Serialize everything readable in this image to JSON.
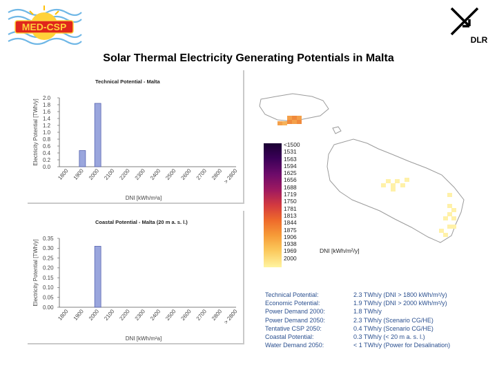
{
  "page_title": "Solar Thermal Electricity Generating Potentials in Malta",
  "logo_left_text": "MED-CSP",
  "logo_right_text": "DLR",
  "colors": {
    "bar": "#9aa6dd",
    "bar_stroke": "#4a57a8",
    "summary_text": "#2a4f8f"
  },
  "chart_data": [
    {
      "type": "bar",
      "title": "Technical Potential - Malta",
      "xlabel": "DNI [kWh/m²a]",
      "ylabel": "Electricity Potential [TWh/y]",
      "categories": [
        "1800",
        "1900",
        "2000",
        "2100",
        "2200",
        "2300",
        "2400",
        "2500",
        "2600",
        "2700",
        "2800",
        "> 2800"
      ],
      "values": [
        0,
        0.47,
        1.84,
        0,
        0,
        0,
        0,
        0,
        0,
        0,
        0,
        0
      ],
      "ylim": [
        0,
        2.0
      ],
      "yticks": [
        "0.0",
        "0.2",
        "0.4",
        "0.6",
        "0.8",
        "1.0",
        "1.2",
        "1.4",
        "1.6",
        "1.8",
        "2.0"
      ],
      "grid": false
    },
    {
      "type": "bar",
      "title": "Coastal Potential - Malta (20 m a. s. l.)",
      "xlabel": "DNI [kWh/m²a]",
      "ylabel": "Electricity Potential [TWh/y]",
      "categories": [
        "1800",
        "1900",
        "2000",
        "2100",
        "2200",
        "2300",
        "2400",
        "2500",
        "2600",
        "2700",
        "2800",
        "> 2800"
      ],
      "values": [
        0,
        0,
        0.31,
        0,
        0,
        0,
        0,
        0,
        0,
        0,
        0,
        0
      ],
      "ylim": [
        0,
        0.35
      ],
      "yticks": [
        "0.00",
        "0.05",
        "0.10",
        "0.15",
        "0.20",
        "0.25",
        "0.30",
        "0.35"
      ],
      "grid": false
    }
  ],
  "map_legend": {
    "labels": [
      "<1500",
      "1531",
      "1563",
      "1594",
      "1625",
      "1656",
      "1688",
      "1719",
      "1750",
      "1781",
      "1813",
      "1844",
      "1875",
      "1906",
      "1938",
      "1969",
      "2000"
    ],
    "unit": "DNI [kWh/m²/y]"
  },
  "summary": [
    {
      "label": "Technical Potential:",
      "value": "2.3 TWh/y (DNI > 1800 kWh/m²/y)"
    },
    {
      "label": "Economic Potential:",
      "value": "1.9 TWh/y (DNI > 2000 kWh/m²/y)"
    },
    {
      "label": "Power Demand 2000:",
      "value": "1.8 TWh/y"
    },
    {
      "label": "Power Demand 2050:",
      "value": "2.3 TWh/y (Scenario CG/HE)"
    },
    {
      "label": "Tentative CSP 2050:",
      "value": "0.4 TWh/y (Scenario CG/HE)"
    },
    {
      "label": "Coastal Potential:",
      "value": "0.3 TWh/y (< 20 m a. s. l.)"
    },
    {
      "label": "Water Demand 2050:",
      "value": "< 1 TWh/y (Power for Desalination)"
    }
  ]
}
